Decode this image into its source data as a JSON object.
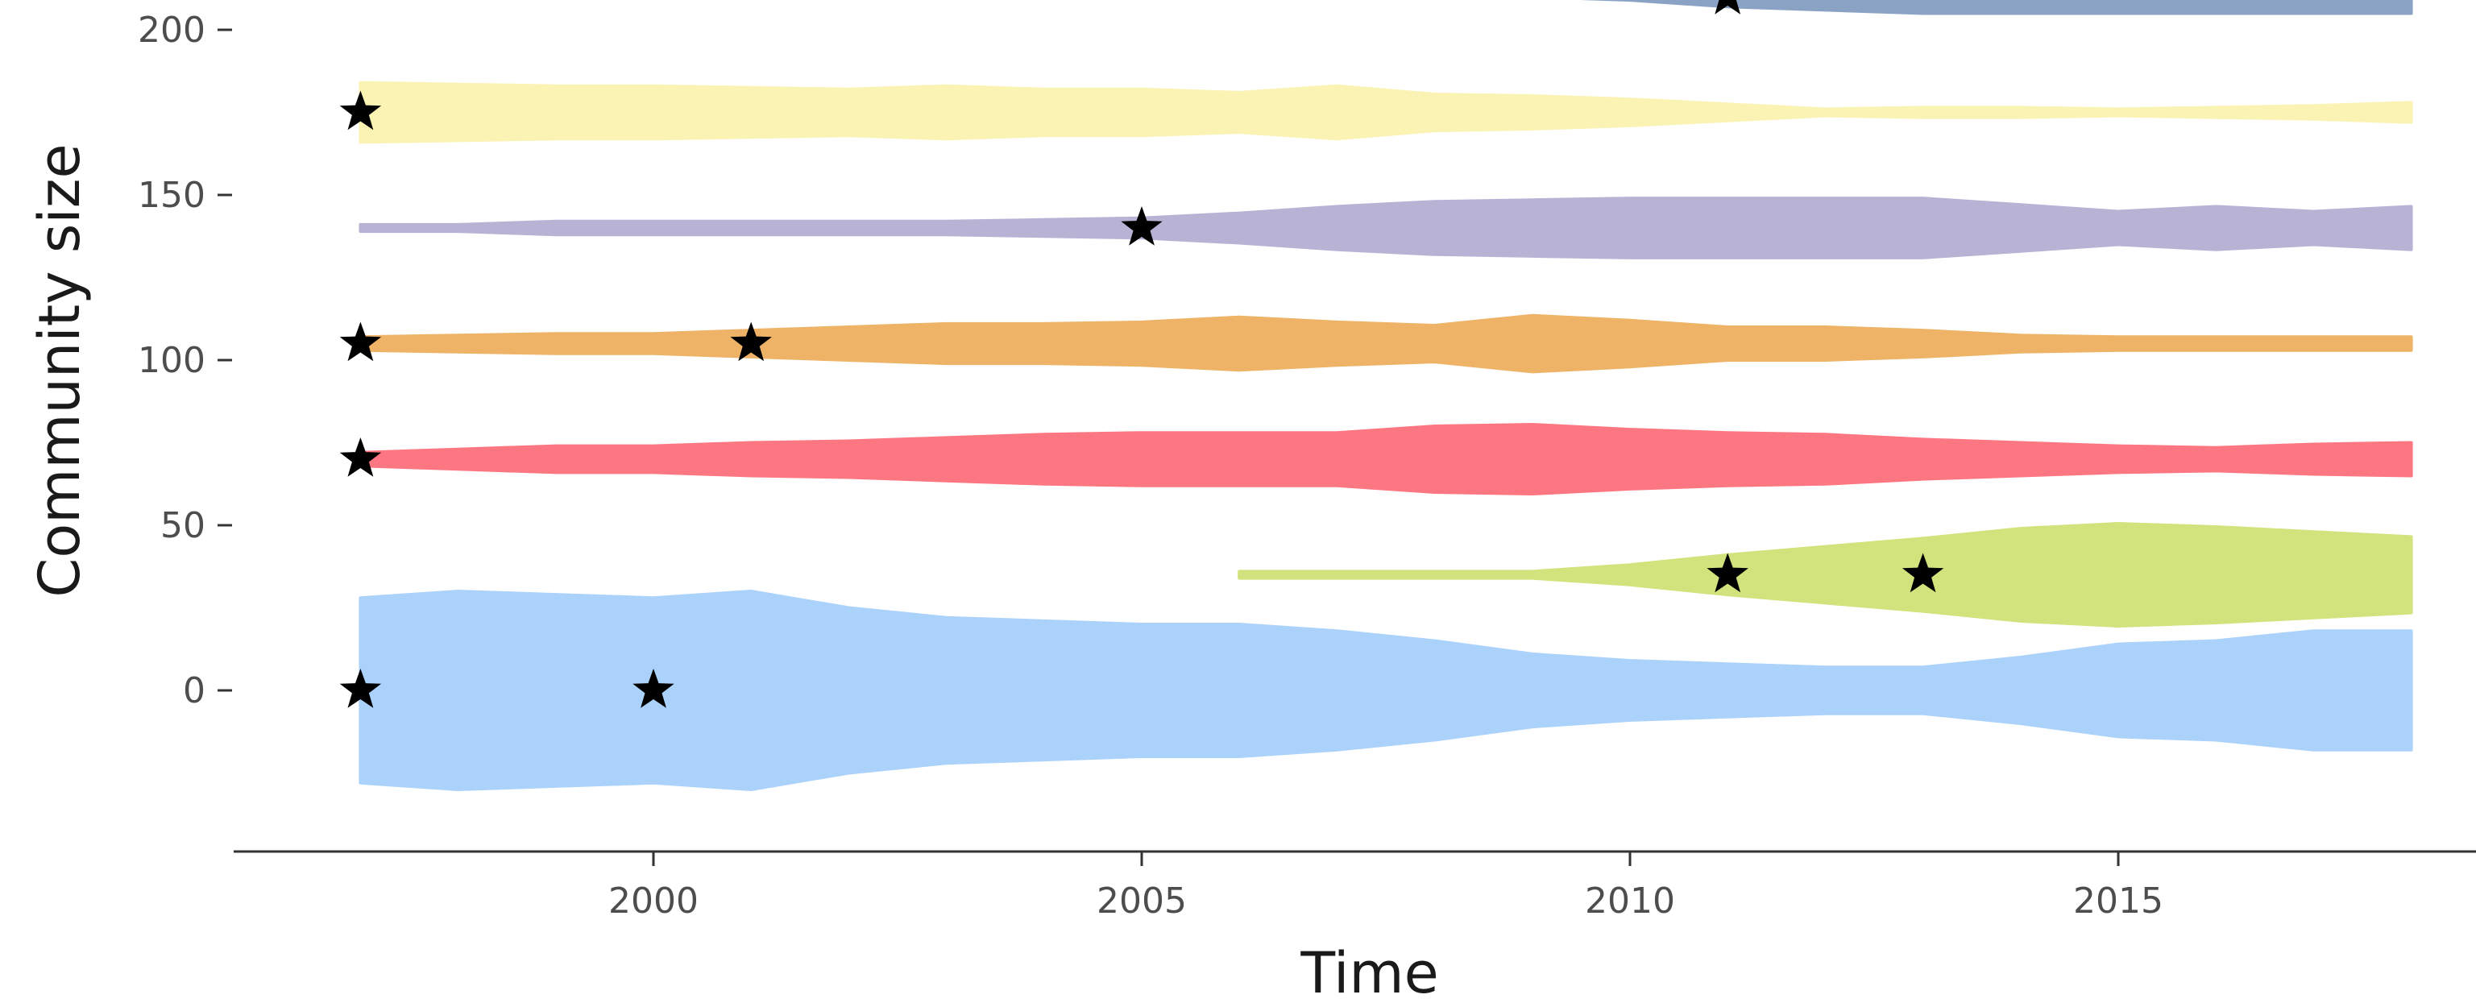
{
  "chart_data": {
    "type": "area",
    "xlabel": "Time",
    "ylabel": "Community size",
    "xlim": [
      1995.8,
      2018.7
    ],
    "ylim": [
      -50,
      210
    ],
    "x_ticks": [
      "2000",
      "2005",
      "2010",
      "2015"
    ],
    "y_ticks": [
      "0",
      "50",
      "100",
      "150",
      "200"
    ],
    "grid": false,
    "series": [
      {
        "color": "#8aa3c4",
        "center": 210,
        "points": [
          [
            2004,
            0
          ],
          [
            2009,
            0
          ],
          [
            2010,
            1
          ],
          [
            2011,
            3
          ],
          [
            2012,
            4
          ],
          [
            2013,
            5
          ],
          [
            2014,
            5
          ],
          [
            2015,
            5
          ],
          [
            2016,
            5
          ],
          [
            2017,
            5
          ],
          [
            2018,
            5
          ]
        ]
      },
      {
        "color": "#fbf3b3",
        "center": 175,
        "points": [
          [
            1997,
            9
          ],
          [
            1998,
            8.5
          ],
          [
            1999,
            8
          ],
          [
            2000,
            8
          ],
          [
            2001,
            7.5
          ],
          [
            2002,
            7
          ],
          [
            2003,
            8
          ],
          [
            2004,
            7
          ],
          [
            2005,
            7
          ],
          [
            2006,
            6
          ],
          [
            2007,
            8
          ],
          [
            2008,
            5.5
          ],
          [
            2009,
            5
          ],
          [
            2010,
            4
          ],
          [
            2011,
            2.5
          ],
          [
            2012,
            1
          ],
          [
            2013,
            1.5
          ],
          [
            2014,
            1.5
          ],
          [
            2015,
            1
          ],
          [
            2016,
            1.5
          ],
          [
            2017,
            2
          ],
          [
            2018,
            3
          ]
        ]
      },
      {
        "color": "#b8b3d5",
        "center": 140,
        "points": [
          [
            1997,
            1
          ],
          [
            1998,
            1
          ],
          [
            1999,
            2
          ],
          [
            2000,
            2
          ],
          [
            2001,
            2
          ],
          [
            2002,
            2
          ],
          [
            2003,
            2
          ],
          [
            2004,
            2.5
          ],
          [
            2005,
            3
          ],
          [
            2006,
            4.5
          ],
          [
            2007,
            6.5
          ],
          [
            2008,
            8
          ],
          [
            2009,
            8.5
          ],
          [
            2010,
            9
          ],
          [
            2011,
            9
          ],
          [
            2012,
            9
          ],
          [
            2013,
            9
          ],
          [
            2014,
            7
          ],
          [
            2015,
            5
          ],
          [
            2016,
            6.5
          ],
          [
            2017,
            5
          ],
          [
            2018,
            6.5
          ]
        ]
      },
      {
        "color": "#eeb367",
        "center": 105,
        "points": [
          [
            1997,
            2
          ],
          [
            1998,
            2.5
          ],
          [
            1999,
            3
          ],
          [
            2000,
            3
          ],
          [
            2001,
            4
          ],
          [
            2002,
            5
          ],
          [
            2003,
            6
          ],
          [
            2004,
            6
          ],
          [
            2005,
            6.5
          ],
          [
            2006,
            8
          ],
          [
            2007,
            6.5
          ],
          [
            2008,
            5.5
          ],
          [
            2009,
            8.5
          ],
          [
            2010,
            7
          ],
          [
            2011,
            5
          ],
          [
            2012,
            5
          ],
          [
            2013,
            4
          ],
          [
            2014,
            2.5
          ],
          [
            2015,
            2
          ],
          [
            2016,
            2
          ],
          [
            2017,
            2
          ],
          [
            2018,
            2
          ]
        ]
      },
      {
        "color": "#fc7782",
        "center": 70,
        "points": [
          [
            1997,
            2
          ],
          [
            1998,
            3
          ],
          [
            1999,
            4
          ],
          [
            2000,
            4
          ],
          [
            2001,
            5
          ],
          [
            2002,
            5.5
          ],
          [
            2003,
            6.5
          ],
          [
            2004,
            7.5
          ],
          [
            2005,
            8
          ],
          [
            2006,
            8
          ],
          [
            2007,
            8
          ],
          [
            2008,
            10
          ],
          [
            2009,
            10.5
          ],
          [
            2010,
            9
          ],
          [
            2011,
            8
          ],
          [
            2012,
            7.5
          ],
          [
            2013,
            6
          ],
          [
            2014,
            5
          ],
          [
            2015,
            4
          ],
          [
            2016,
            3.5
          ],
          [
            2017,
            4.5
          ],
          [
            2018,
            5
          ]
        ]
      },
      {
        "color": "#d2e27c",
        "center": 35,
        "points": [
          [
            2006,
            1
          ],
          [
            2007,
            1
          ],
          [
            2008,
            1
          ],
          [
            2009,
            1
          ],
          [
            2010,
            3
          ],
          [
            2011,
            6
          ],
          [
            2012,
            8.5
          ],
          [
            2013,
            11
          ],
          [
            2014,
            14
          ],
          [
            2015,
            15.5
          ],
          [
            2016,
            14.5
          ],
          [
            2017,
            13
          ],
          [
            2018,
            11.5
          ]
        ]
      },
      {
        "color": "#abd2fa",
        "center": 0,
        "points": [
          [
            1997,
            28
          ],
          [
            1998,
            30
          ],
          [
            1999,
            29
          ],
          [
            2000,
            28
          ],
          [
            2001,
            30
          ],
          [
            2002,
            25
          ],
          [
            2003,
            22
          ],
          [
            2004,
            21
          ],
          [
            2005,
            20
          ],
          [
            2006,
            20
          ],
          [
            2007,
            18
          ],
          [
            2008,
            15
          ],
          [
            2009,
            11
          ],
          [
            2010,
            9
          ],
          [
            2011,
            8
          ],
          [
            2012,
            7
          ],
          [
            2013,
            7
          ],
          [
            2014,
            10
          ],
          [
            2015,
            14
          ],
          [
            2016,
            15
          ],
          [
            2017,
            18
          ],
          [
            2018,
            18
          ]
        ]
      }
    ],
    "stars": [
      {
        "x": 2011,
        "y": 210
      },
      {
        "x": 1997,
        "y": 175
      },
      {
        "x": 2005,
        "y": 140
      },
      {
        "x": 1997,
        "y": 105
      },
      {
        "x": 2001,
        "y": 105
      },
      {
        "x": 1997,
        "y": 70
      },
      {
        "x": 2011,
        "y": 35
      },
      {
        "x": 2013,
        "y": 35
      },
      {
        "x": 1997,
        "y": 0
      },
      {
        "x": 2000,
        "y": 0
      }
    ]
  }
}
